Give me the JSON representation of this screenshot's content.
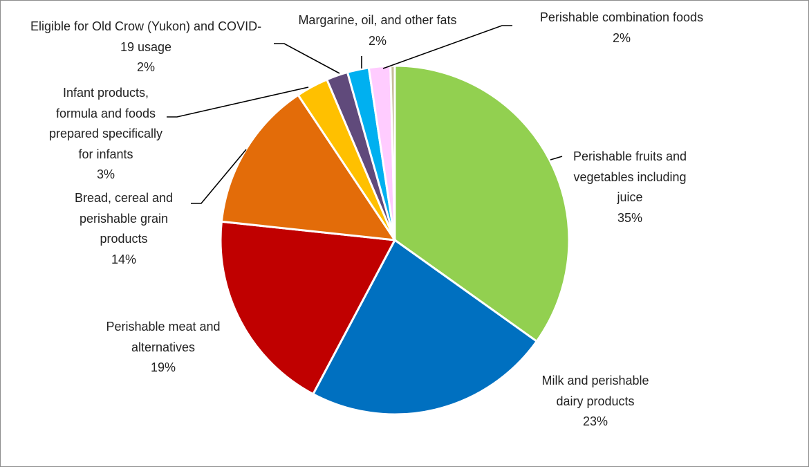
{
  "chart_data": {
    "type": "pie",
    "start_angle": "12 o'clock, clockwise",
    "slices": [
      {
        "label": "Perishable fruits and vegetables including juice",
        "lines": [
          "Perishable fruits and",
          "vegetables including",
          "juice"
        ],
        "value": 35,
        "pct_label": "35%",
        "color": "#92d050"
      },
      {
        "label": "Milk and perishable dairy products",
        "lines": [
          "Milk and perishable",
          "dairy products"
        ],
        "value": 23,
        "pct_label": "23%",
        "color": "#0070c0"
      },
      {
        "label": "Perishable meat and alternatives",
        "lines": [
          "Perishable meat and",
          "alternatives"
        ],
        "value": 19,
        "pct_label": "19%",
        "color": "#c00000"
      },
      {
        "label": "Bread, cereal and perishable grain products",
        "lines": [
          "Bread, cereal and",
          "perishable grain",
          "products"
        ],
        "value": 14,
        "pct_label": "14%",
        "color": "#e36c09"
      },
      {
        "label": "Infant products, formula and foods prepared specifically for infants",
        "lines": [
          "Infant products,",
          "formula and foods",
          "prepared specifically",
          "for infants"
        ],
        "value": 3,
        "pct_label": "3%",
        "color": "#ffc000"
      },
      {
        "label": "Eligible for Old Crow (Yukon) and COVID-19 usage",
        "lines": [
          "Eligible for Old Crow (Yukon) and COVID-",
          "19 usage"
        ],
        "value": 2,
        "pct_label": "2%",
        "color": "#604a7b"
      },
      {
        "label": "Margarine, oil, and other fats",
        "lines": [
          "Margarine, oil, and other fats"
        ],
        "value": 2,
        "pct_label": "2%",
        "color": "#00b0f0"
      },
      {
        "label": "Perishable combination foods",
        "lines": [
          "Perishable combination foods"
        ],
        "value": 2,
        "pct_label": "2%",
        "color": "#ffccff"
      },
      {
        "label": "",
        "lines": [],
        "value": 0.4,
        "pct_label": "",
        "color": "#c4bd97"
      }
    ]
  }
}
